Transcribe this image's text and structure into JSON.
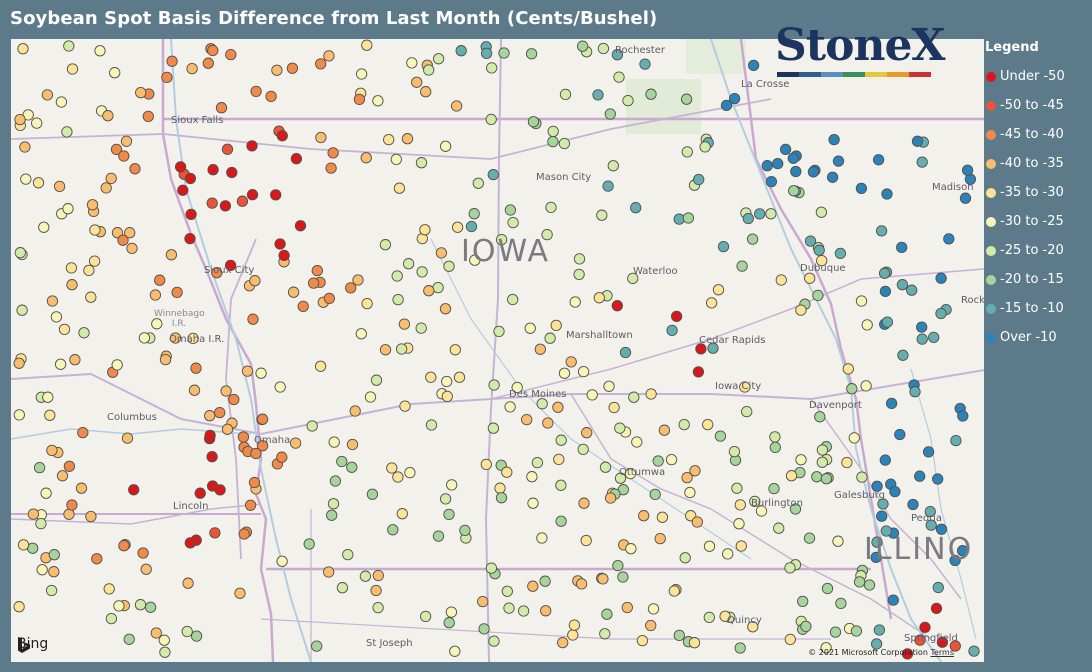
{
  "title": "Soybean Spot Basis Difference from Last Month (Cents/Bushel)",
  "legend": {
    "title": "Legend",
    "items": [
      {
        "label": "Under -50",
        "color": "#d7191c"
      },
      {
        "label": "-50 to -45",
        "color": "#e8553a"
      },
      {
        "label": "-45 to -40",
        "color": "#f08a4b"
      },
      {
        "label": "-40 to -35",
        "color": "#f9bd70"
      },
      {
        "label": "-35 to -30",
        "color": "#fce397"
      },
      {
        "label": "-30 to -25",
        "color": "#f7f5b8"
      },
      {
        "label": "-25 to -20",
        "color": "#d3ebaa"
      },
      {
        "label": "-20 to -15",
        "color": "#a5d59c"
      },
      {
        "label": "-15 to -10",
        "color": "#64aeb0"
      },
      {
        "label": "Over -10",
        "color": "#2b83ba"
      }
    ]
  },
  "logo": {
    "text": "StoneX",
    "tm": "™",
    "bar_colors": [
      "#1c3560",
      "#2e5e91",
      "#5b8fc1",
      "#3a8f5f",
      "#e7c73a",
      "#e89a2d",
      "#c8323a"
    ]
  },
  "map_labels": {
    "state_iowa": "IOWA",
    "state_illinois": "ILLINO",
    "cities": [
      "Rochester",
      "La Crosse",
      "Mason City",
      "Madison",
      "Sioux City",
      "Waterloo",
      "Dubuque",
      "Marshalltown",
      "Cedar Rapids",
      "Des Moines",
      "Iowa City",
      "Davenport",
      "Omaha",
      "Columbus",
      "Ottumwa",
      "Galesburg",
      "Burlington",
      "Peoria",
      "Quincy",
      "Springfield",
      "St Joseph",
      "Sioux Falls",
      "Winnebago I.R.",
      "Omaha I.R.",
      "Lincoln",
      "Rockford"
    ]
  },
  "bing": "Bing",
  "copyright": "© 2021 Microsoft Corporation",
  "terms": "Terms"
}
